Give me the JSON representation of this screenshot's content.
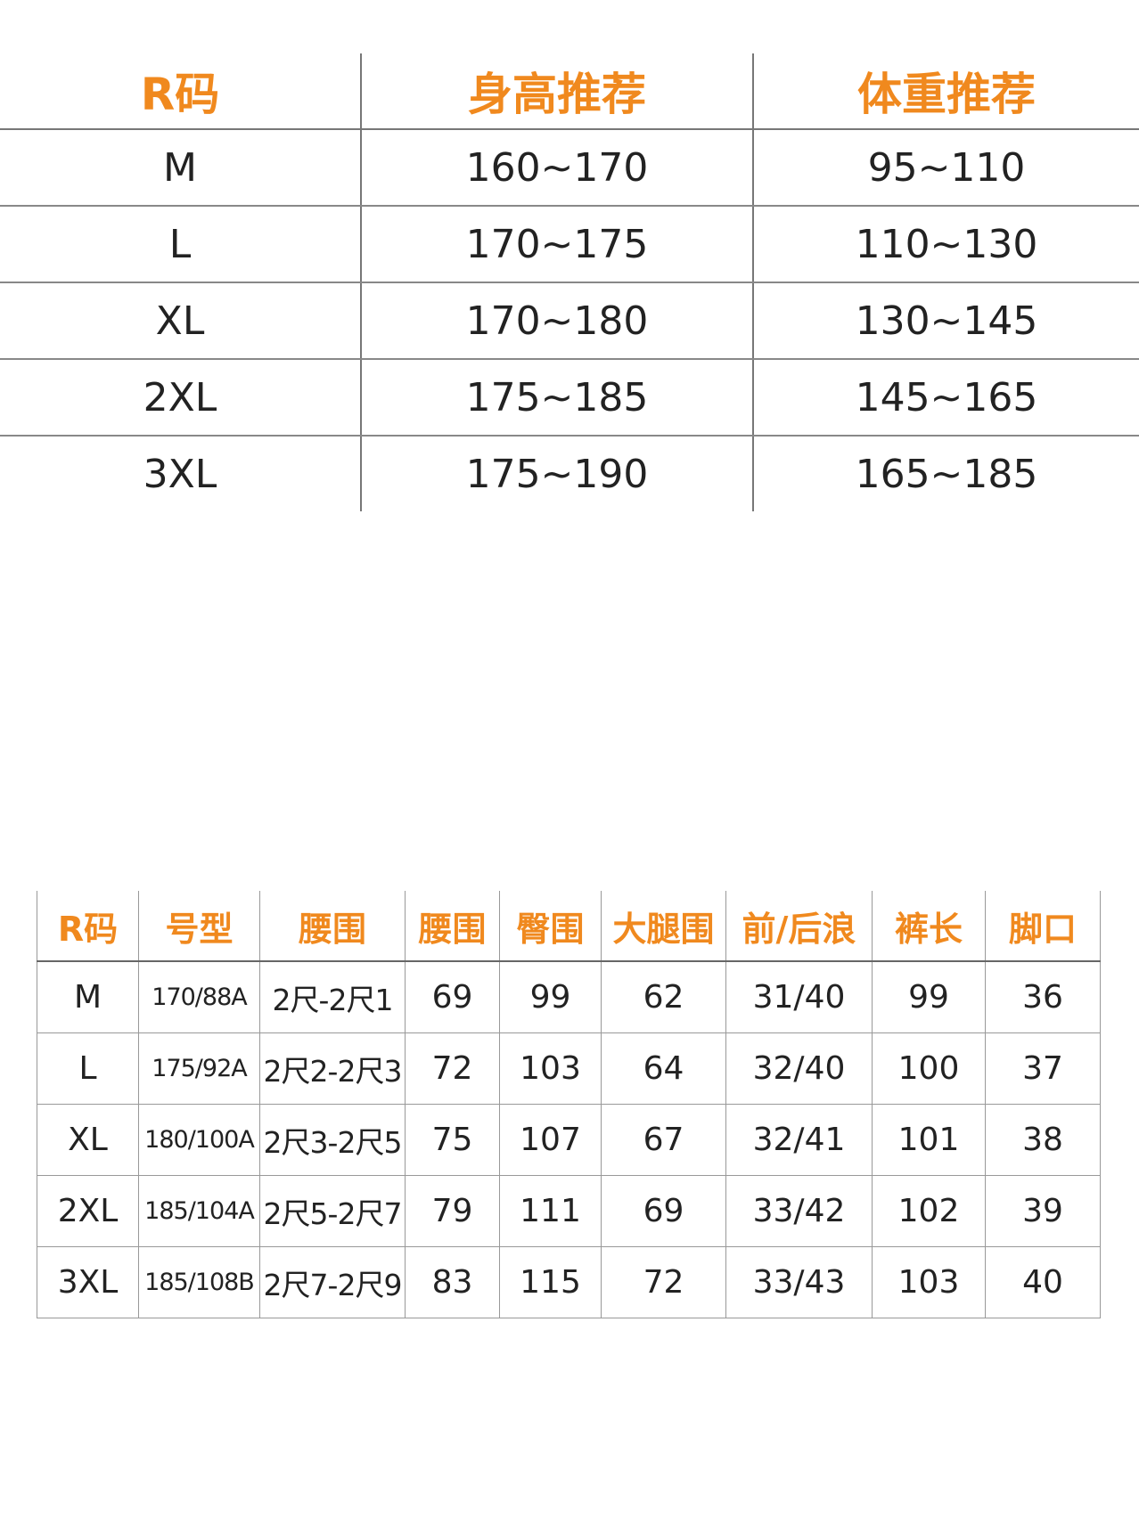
{
  "table1": {
    "headers": [
      "R码",
      "身高推荐",
      "体重推荐"
    ],
    "rows": [
      [
        "M",
        "160~170",
        "95~110"
      ],
      [
        "L",
        "170~175",
        "110~130"
      ],
      [
        "XL",
        "170~180",
        "130~145"
      ],
      [
        "2XL",
        "175~185",
        "145~165"
      ],
      [
        "3XL",
        "175~190",
        "165~185"
      ]
    ]
  },
  "table2": {
    "headers": [
      "R码",
      "号型",
      "腰围",
      "腰围",
      "臀围",
      "大腿围",
      "前/后浪",
      "裤长",
      "脚口"
    ],
    "rows": [
      [
        "M",
        "170/88A",
        "2尺-2尺1",
        "69",
        "99",
        "62",
        "31/40",
        "99",
        "36"
      ],
      [
        "L",
        "175/92A",
        "2尺2-2尺3",
        "72",
        "103",
        "64",
        "32/40",
        "100",
        "37"
      ],
      [
        "XL",
        "180/100A",
        "2尺3-2尺5",
        "75",
        "107",
        "67",
        "32/41",
        "101",
        "38"
      ],
      [
        "2XL",
        "185/104A",
        "2尺5-2尺7",
        "79",
        "111",
        "69",
        "33/42",
        "102",
        "39"
      ],
      [
        "3XL",
        "185/108B",
        "2尺7-2尺9",
        "83",
        "115",
        "72",
        "33/43",
        "103",
        "40"
      ]
    ]
  },
  "colors": {
    "header": "#f0891e",
    "text": "#222222"
  }
}
